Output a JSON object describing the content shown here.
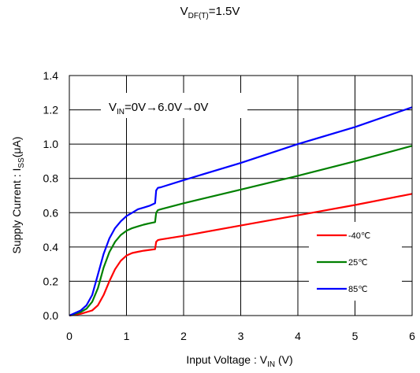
{
  "chart_data": {
    "type": "line",
    "title_main": "V",
    "title_sub": "DF(T)",
    "title_tail": "=1.5V",
    "annotation_main": "V",
    "annotation_sub": "IN",
    "annotation_tail": "=0V→6.0V→0V",
    "xlabel_main": "Input Voltage : V",
    "xlabel_sub": "IN",
    "xlabel_tail": " (V)",
    "ylabel_main": "Supply Current : I",
    "ylabel_sub": "SS",
    "ylabel_tail": "(μA)",
    "xlim": [
      0,
      6
    ],
    "ylim": [
      0,
      1.4
    ],
    "xticks": [
      0,
      1,
      2,
      3,
      4,
      5,
      6
    ],
    "yticks": [
      "0.0",
      "0.2",
      "0.4",
      "0.6",
      "0.8",
      "1.0",
      "1.2",
      "1.4"
    ],
    "grid": true,
    "legend_position": "bottom-right",
    "series": [
      {
        "name": "-40℃",
        "color": "#ff0000",
        "x": [
          0,
          0.2,
          0.4,
          0.5,
          0.6,
          0.7,
          0.8,
          0.9,
          1.0,
          1.1,
          1.2,
          1.3,
          1.4,
          1.5,
          1.52,
          1.55,
          1.6,
          2.0,
          3.0,
          4.0,
          5.0,
          6.0
        ],
        "y": [
          0,
          0.01,
          0.03,
          0.06,
          0.12,
          0.2,
          0.27,
          0.32,
          0.35,
          0.365,
          0.372,
          0.378,
          0.383,
          0.387,
          0.43,
          0.44,
          0.444,
          0.465,
          0.525,
          0.585,
          0.645,
          0.71
        ]
      },
      {
        "name": "25℃",
        "color": "#008000",
        "x": [
          0,
          0.2,
          0.3,
          0.4,
          0.5,
          0.6,
          0.7,
          0.8,
          0.9,
          1.0,
          1.1,
          1.2,
          1.3,
          1.4,
          1.5,
          1.52,
          1.55,
          1.6,
          2.0,
          3.0,
          4.0,
          5.0,
          6.0
        ],
        "y": [
          0,
          0.02,
          0.04,
          0.08,
          0.16,
          0.28,
          0.37,
          0.43,
          0.47,
          0.495,
          0.51,
          0.52,
          0.53,
          0.538,
          0.545,
          0.6,
          0.615,
          0.62,
          0.655,
          0.735,
          0.815,
          0.9,
          0.99
        ]
      },
      {
        "name": "85℃",
        "color": "#0000ff",
        "x": [
          0,
          0.2,
          0.3,
          0.4,
          0.5,
          0.6,
          0.7,
          0.8,
          0.9,
          1.0,
          1.1,
          1.2,
          1.3,
          1.4,
          1.5,
          1.52,
          1.55,
          1.6,
          2.0,
          3.0,
          4.0,
          5.0,
          6.0
        ],
        "y": [
          0,
          0.03,
          0.06,
          0.12,
          0.24,
          0.36,
          0.45,
          0.51,
          0.55,
          0.58,
          0.6,
          0.62,
          0.63,
          0.64,
          0.655,
          0.73,
          0.745,
          0.748,
          0.79,
          0.89,
          1.0,
          1.1,
          1.215
        ]
      }
    ]
  }
}
